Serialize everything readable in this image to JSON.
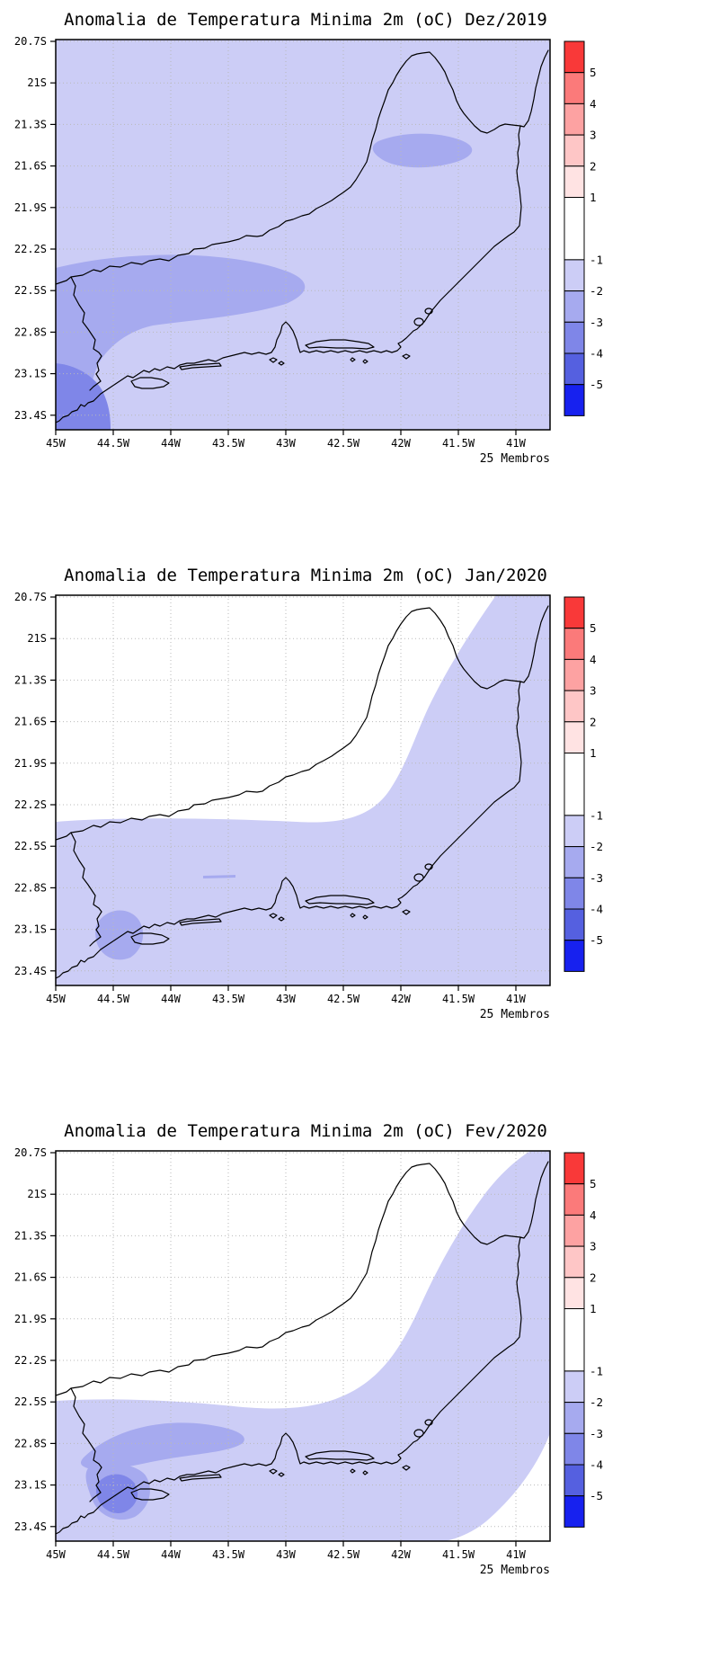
{
  "panels": [
    {
      "title": "Anomalia de Temperatura Minima 2m (oC) Dez/2019",
      "members_note": "25 Membros"
    },
    {
      "title": "Anomalia de Temperatura Minima 2m (oC) Jan/2020",
      "members_note": "25 Membros"
    },
    {
      "title": "Anomalia de Temperatura Minima 2m (oC) Fev/2020",
      "members_note": "25 Membros"
    }
  ],
  "axes": {
    "lat_tick_labels": [
      "20.7S",
      "21S",
      "21.3S",
      "21.6S",
      "21.9S",
      "22.2S",
      "22.5S",
      "22.8S",
      "23.1S",
      "23.4S"
    ],
    "lon_tick_labels": [
      "45W",
      "44.5W",
      "44W",
      "43.5W",
      "43W",
      "42.5W",
      "42W",
      "41.5W",
      "41W"
    ]
  },
  "colorbar": {
    "tick_labels": [
      "5",
      "4",
      "3",
      "2",
      "1",
      "-1",
      "-2",
      "-3",
      "-4",
      "-5"
    ],
    "segments": [
      {
        "range": "> 5",
        "color": "#f93939"
      },
      {
        "range": "4 to 5",
        "color": "#fb7a7a"
      },
      {
        "range": "3 to 4",
        "color": "#fda2a2"
      },
      {
        "range": "2 to 3",
        "color": "#fec6c6"
      },
      {
        "range": "1 to 2",
        "color": "#ffe3e3"
      },
      {
        "range": "-1 to 1",
        "color": "#ffffff"
      },
      {
        "range": "-2 to -1",
        "color": "#cccdf6"
      },
      {
        "range": "-3 to -2",
        "color": "#a6aaef"
      },
      {
        "range": "-4 to -3",
        "color": "#7f86e8"
      },
      {
        "range": "-5 to -4",
        "color": "#5560e0"
      },
      {
        "range": "< -5",
        "color": "#1721ef"
      }
    ]
  },
  "palette": {
    "shade_m1_m2": "#cccdf6",
    "shade_m2_m3": "#a6aaef",
    "shade_m3_m4": "#7f86e8",
    "map_outline": "#000000",
    "grid": "#b9b9b9"
  },
  "chart_data": [
    {
      "type": "heatmap",
      "subtype": "filled-contour-map",
      "title": "Anomalia de Temperatura Minima 2m (oC) Dez/2019",
      "month": "Dez/2019",
      "variable": "2m minimum temperature anomaly",
      "unit": "oC",
      "ensemble_members": 25,
      "region": "Rio de Janeiro state, Brazil",
      "lon_ticks": [
        "45W",
        "44.5W",
        "44W",
        "43.5W",
        "43W",
        "42.5W",
        "42W",
        "41.5W",
        "41W"
      ],
      "lat_ticks": [
        "20.7S",
        "21S",
        "21.3S",
        "21.6S",
        "21.9S",
        "22.2S",
        "22.5S",
        "22.8S",
        "23.1S",
        "23.4S"
      ],
      "contour_levels": [
        -5,
        -4,
        -3,
        -2,
        -1,
        1,
        2,
        3,
        4,
        5
      ],
      "filled_regions": [
        {
          "value_range": [
            -2,
            -1
          ],
          "extent": "entire map domain shaded light blue"
        },
        {
          "value_range": [
            -3,
            -2
          ],
          "extent": "band from west edge (~45W-43.2W, 22.3S-22.8S) extending to southwest corner; small patch near 42.2W-41.6W, 21.4S-21.6S"
        },
        {
          "value_range": [
            -4,
            -3
          ],
          "extent": "far southwest corner near 45W, 23.1S-23.5S"
        }
      ]
    },
    {
      "type": "heatmap",
      "subtype": "filled-contour-map",
      "title": "Anomalia de Temperatura Minima 2m (oC) Jan/2020",
      "month": "Jan/2020",
      "variable": "2m minimum temperature anomaly",
      "unit": "oC",
      "ensemble_members": 25,
      "region": "Rio de Janeiro state, Brazil",
      "lon_ticks": [
        "45W",
        "44.5W",
        "44W",
        "43.5W",
        "43W",
        "42.5W",
        "42W",
        "41.5W",
        "41W"
      ],
      "lat_ticks": [
        "20.7S",
        "21S",
        "21.3S",
        "21.6S",
        "21.9S",
        "22.2S",
        "22.5S",
        "22.8S",
        "23.1S",
        "23.4S"
      ],
      "contour_levels": [
        -5,
        -4,
        -3,
        -2,
        -1,
        1,
        2,
        3,
        4,
        5
      ],
      "filled_regions": [
        {
          "value_range": [
            -1,
            1
          ],
          "extent": "white over the northwest interior (above ~22.3S west of 42.5W)"
        },
        {
          "value_range": [
            -2,
            -1
          ],
          "extent": "southern half of the domain and the whole east/northeast coastal strip up to the top-right corner"
        },
        {
          "value_range": [
            -3,
            -2
          ],
          "extent": "small pocket near 44.6W, 23.0S-23.2S (Sepetiba/Ilha Grande area) and a thin sliver near 43.6W, 22.7S"
        }
      ]
    },
    {
      "type": "heatmap",
      "subtype": "filled-contour-map",
      "title": "Anomalia de Temperatura Minima 2m (oC) Fev/2020",
      "month": "Fev/2020",
      "variable": "2m minimum temperature anomaly",
      "unit": "oC",
      "ensemble_members": 25,
      "region": "Rio de Janeiro state, Brazil",
      "lon_ticks": [
        "45W",
        "44.5W",
        "44W",
        "43.5W",
        "43W",
        "42.5W",
        "42W",
        "41.5W",
        "41W"
      ],
      "lat_ticks": [
        "20.7S",
        "21S",
        "21.3S",
        "21.6S",
        "21.9S",
        "22.2S",
        "22.5S",
        "22.8S",
        "23.1S",
        "23.4S"
      ],
      "contour_levels": [
        -5,
        -4,
        -3,
        -2,
        -1,
        1,
        2,
        3,
        4,
        5
      ],
      "filled_regions": [
        {
          "value_range": [
            -1,
            1
          ],
          "extent": "white over the northwest interior and a white pocket at the lower-right corner"
        },
        {
          "value_range": [
            -2,
            -1
          ],
          "extent": "southern third of the domain and the east coastal strip up to the top-right corner"
        },
        {
          "value_range": [
            -3,
            -2
          ],
          "extent": "elongated band ~44.7W-43.4W around 22.6S-22.9S extending southwest toward the coast"
        },
        {
          "value_range": [
            -4,
            -3
          ],
          "extent": "small core near 44.6W, 23.0S-23.2S"
        }
      ]
    }
  ]
}
